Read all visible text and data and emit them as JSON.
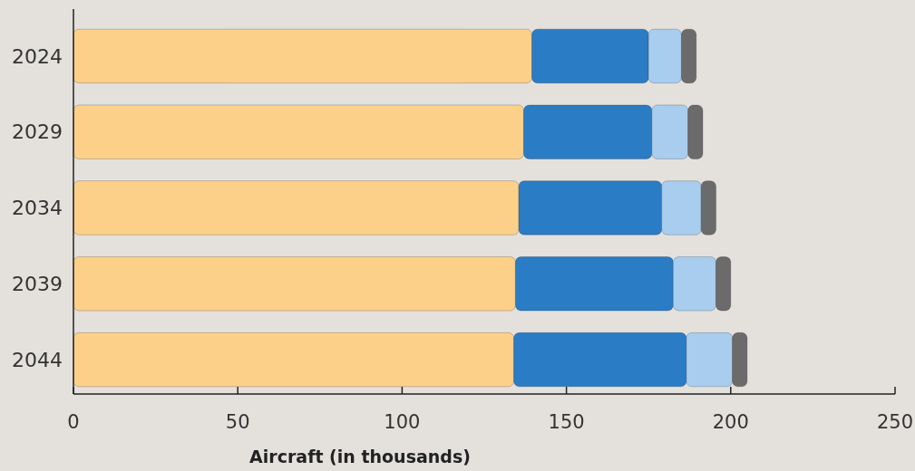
{
  "chart_data": {
    "type": "bar",
    "orientation": "horizontal",
    "stacked": true,
    "categories": [
      "2024",
      "2029",
      "2034",
      "2039",
      "2044"
    ],
    "series": [
      {
        "color": "#fdd08a",
        "values": [
          139.5,
          137,
          135.5,
          134.5,
          134
        ]
      },
      {
        "color": "#2a7cc4",
        "values": [
          35.5,
          39,
          43.5,
          48,
          52.5
        ]
      },
      {
        "color": "#a9cdee",
        "values": [
          10,
          11,
          12,
          13,
          14
        ]
      },
      {
        "color": "#6b6b6b",
        "values": [
          4.5,
          4.5,
          4.5,
          4.5,
          4.5
        ]
      }
    ],
    "xlim": [
      0,
      250
    ],
    "xticks": [
      0,
      50,
      100,
      150,
      200,
      250
    ],
    "xlabel": "Aircraft (in thousands)",
    "grid": false
  }
}
